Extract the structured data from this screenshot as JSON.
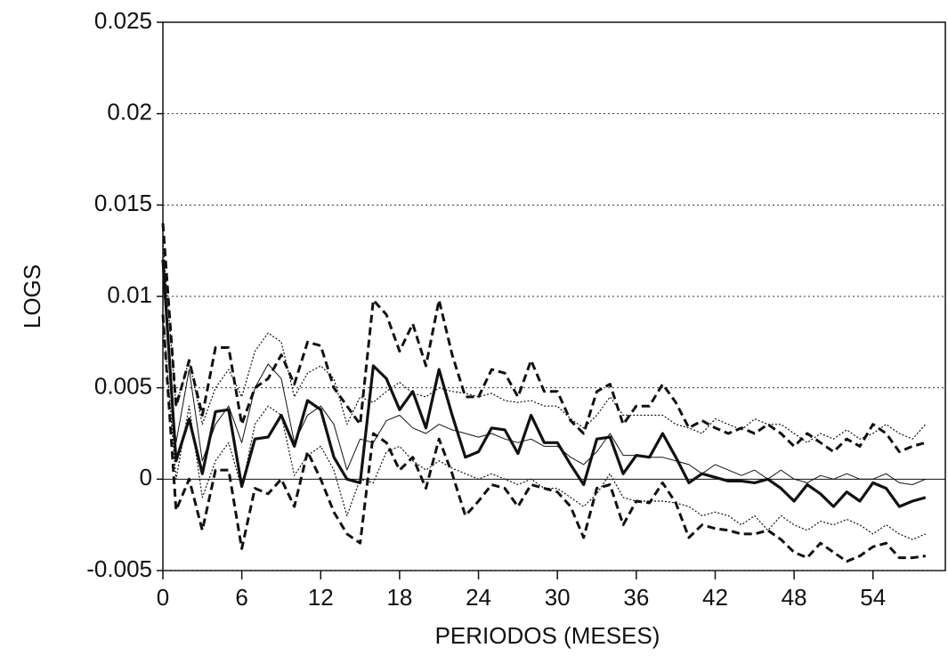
{
  "chart_data": {
    "type": "line",
    "xlabel": "PERIODOS (MESES)",
    "ylabel": "LOGS",
    "x": [
      0,
      1,
      2,
      3,
      4,
      5,
      6,
      7,
      8,
      9,
      10,
      11,
      12,
      13,
      14,
      15,
      16,
      17,
      18,
      19,
      20,
      21,
      22,
      23,
      24,
      25,
      26,
      27,
      28,
      29,
      30,
      31,
      32,
      33,
      34,
      35,
      36,
      37,
      38,
      39,
      40,
      41,
      42,
      43,
      44,
      45,
      46,
      47,
      48,
      49,
      50,
      51,
      52,
      53,
      54,
      55,
      56,
      57,
      58
    ],
    "xlim": [
      0,
      59.5
    ],
    "xticks": [
      0,
      6,
      12,
      18,
      24,
      30,
      36,
      42,
      48,
      54
    ],
    "ylim": [
      -0.005,
      0.025
    ],
    "yticks": [
      -0.005,
      0,
      0.005,
      0.01,
      0.015,
      0.02,
      0.025
    ],
    "grid": true,
    "series": [
      {
        "color": "#111",
        "style": "thick",
        "values": [
          0.012,
          0.001,
          0.0033,
          0.0003,
          0.0037,
          0.0038,
          -0.0004,
          0.0022,
          0.0023,
          0.0035,
          0.0018,
          0.0043,
          0.0038,
          0.0012,
          0.0,
          -0.0002,
          0.0062,
          0.0055,
          0.0038,
          0.0048,
          0.0028,
          0.006,
          0.0035,
          0.0012,
          0.0015,
          0.0028,
          0.0027,
          0.0014,
          0.0035,
          0.002,
          0.002,
          0.0008,
          -0.0003,
          0.0022,
          0.0023,
          0.0003,
          0.0013,
          0.0012,
          0.0025,
          0.0012,
          -0.0002,
          0.0003,
          0.0001,
          -0.0001,
          -0.0001,
          -0.0002,
          0.0,
          -0.0005,
          -0.0012,
          -0.0003,
          -0.0008,
          -0.0015,
          -0.0007,
          -0.0012,
          -0.0002,
          -0.0005,
          -0.0015,
          -0.0012,
          -0.001
        ]
      },
      {
        "color": "#111",
        "style": "dashed",
        "values": [
          0.014,
          0.004,
          0.0065,
          0.0035,
          0.0072,
          0.0072,
          0.003,
          0.005,
          0.0055,
          0.0068,
          0.0052,
          0.0075,
          0.0073,
          0.005,
          0.004,
          0.003,
          0.0098,
          0.009,
          0.007,
          0.0085,
          0.0062,
          0.0098,
          0.0068,
          0.0045,
          0.0045,
          0.006,
          0.0058,
          0.0045,
          0.0065,
          0.0048,
          0.0048,
          0.0032,
          0.0025,
          0.0048,
          0.0052,
          0.003,
          0.004,
          0.004,
          0.0052,
          0.0042,
          0.0028,
          0.0032,
          0.0028,
          0.0025,
          0.0028,
          0.0025,
          0.003,
          0.0025,
          0.0018,
          0.0025,
          0.002,
          0.0015,
          0.0022,
          0.0018,
          0.003,
          0.0025,
          0.0015,
          0.0018,
          0.002
        ]
      },
      {
        "color": "#111",
        "style": "dashed",
        "values": [
          0.009,
          -0.0017,
          0.0,
          -0.0028,
          0.0005,
          0.0005,
          -0.0038,
          -0.0005,
          -0.0008,
          0.0,
          -0.0015,
          0.0015,
          0.0,
          -0.0018,
          -0.003,
          -0.0035,
          0.0025,
          0.002,
          0.0005,
          0.0012,
          -0.0005,
          0.0022,
          0.0003,
          -0.002,
          -0.0012,
          -0.0003,
          -0.0005,
          -0.0015,
          -0.0003,
          -0.0005,
          -0.0007,
          -0.0015,
          -0.0032,
          -0.0005,
          -0.0003,
          -0.0025,
          -0.0012,
          -0.0013,
          -0.0002,
          -0.0013,
          -0.0032,
          -0.0025,
          -0.0027,
          -0.0028,
          -0.003,
          -0.003,
          -0.0028,
          -0.0033,
          -0.004,
          -0.0043,
          -0.0035,
          -0.004,
          -0.0045,
          -0.0042,
          -0.0037,
          -0.0035,
          -0.0043,
          -0.0043,
          -0.0042
        ]
      },
      {
        "color": "#111",
        "style": "thin",
        "values": [
          0.011,
          0.002,
          0.006,
          0.001,
          0.003,
          0.004,
          0.002,
          0.005,
          0.0063,
          0.0055,
          0.002,
          0.0035,
          0.004,
          0.003,
          0.0005,
          0.0022,
          0.002,
          0.0032,
          0.0035,
          0.0028,
          0.0025,
          0.003,
          0.0027,
          0.0025,
          0.0023,
          0.0025,
          0.0022,
          0.002,
          0.0022,
          0.0018,
          0.0018,
          0.0012,
          0.0008,
          0.0015,
          0.0025,
          0.0013,
          0.0013,
          0.0012,
          0.0012,
          0.001,
          0.0008,
          0.0003,
          0.0008,
          0.0005,
          0.0002,
          0.0005,
          0.0,
          0.0005,
          0.0,
          -0.0002,
          0.0002,
          0.0,
          0.0003,
          0.0,
          0.0,
          0.0003,
          -0.0002,
          -0.0003,
          0.0
        ]
      },
      {
        "color": "#111",
        "style": "dotted",
        "values": [
          0.013,
          0.004,
          0.0065,
          0.003,
          0.005,
          0.006,
          0.0045,
          0.007,
          0.008,
          0.0075,
          0.0045,
          0.0058,
          0.0062,
          0.0055,
          0.003,
          0.0045,
          0.0042,
          0.0048,
          0.0053,
          0.0047,
          0.0045,
          0.005,
          0.0048,
          0.0047,
          0.0045,
          0.0047,
          0.0043,
          0.0042,
          0.0043,
          0.004,
          0.004,
          0.0033,
          0.0028,
          0.0035,
          0.0045,
          0.0035,
          0.0035,
          0.0035,
          0.0035,
          0.003,
          0.0028,
          0.0025,
          0.0033,
          0.003,
          0.0027,
          0.0033,
          0.003,
          0.003,
          0.0025,
          0.002,
          0.0025,
          0.0022,
          0.0027,
          0.0022,
          0.0025,
          0.003,
          0.0025,
          0.0022,
          0.003
        ]
      },
      {
        "color": "#111",
        "style": "dotted",
        "values": [
          0.009,
          0.0,
          0.004,
          -0.001,
          0.001,
          0.002,
          -0.0005,
          0.003,
          0.004,
          0.0035,
          0.0002,
          0.0013,
          0.0018,
          0.0005,
          -0.002,
          0.0,
          -0.0002,
          0.0015,
          0.0018,
          0.001,
          0.0005,
          0.001,
          0.0006,
          0.0003,
          0.0,
          0.0003,
          0.0,
          -0.0003,
          0.0,
          -0.0005,
          -0.0005,
          -0.001,
          -0.0015,
          -0.0008,
          0.0003,
          -0.001,
          -0.0012,
          -0.0012,
          -0.0012,
          -0.0013,
          -0.0015,
          -0.002,
          -0.0018,
          -0.002,
          -0.0025,
          -0.002,
          -0.0028,
          -0.002,
          -0.0025,
          -0.0028,
          -0.0023,
          -0.0025,
          -0.0022,
          -0.0025,
          -0.003,
          -0.0025,
          -0.003,
          -0.0033,
          -0.003
        ]
      }
    ]
  }
}
